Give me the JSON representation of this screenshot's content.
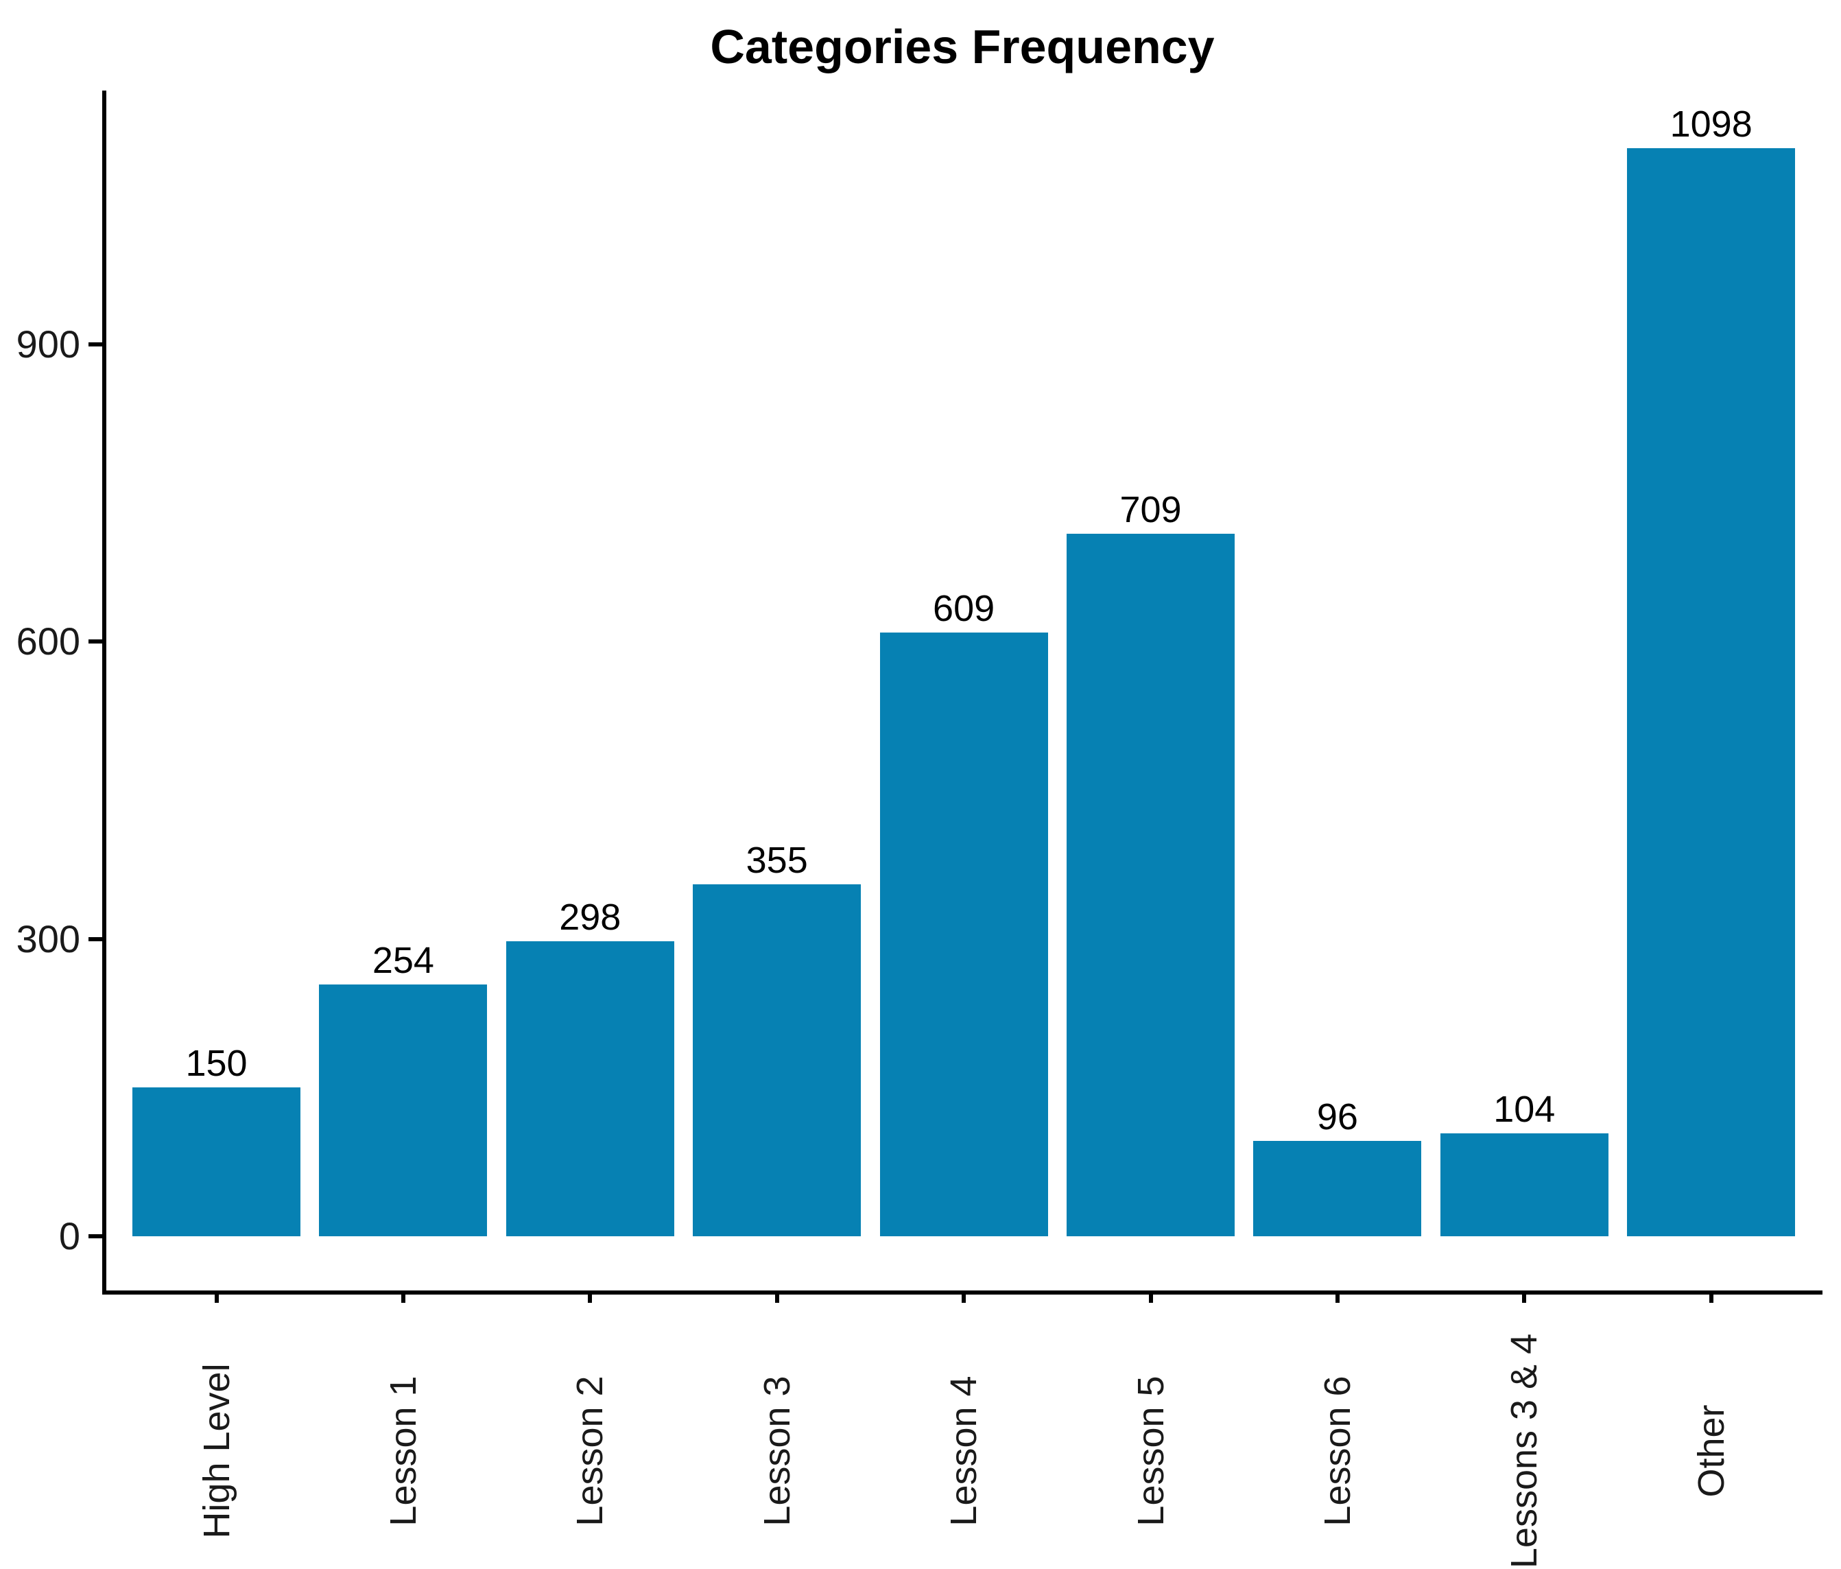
{
  "chart_data": {
    "type": "bar",
    "title": "Categories Frequency",
    "categories": [
      "High Level",
      "Lesson 1",
      "Lesson 2",
      "Lesson 3",
      "Lesson 4",
      "Lesson 5",
      "Lesson 6",
      "Lessons 3 & 4",
      "Other"
    ],
    "values": [
      150,
      254,
      298,
      355,
      609,
      709,
      96,
      104,
      1098
    ],
    "yticks": [
      0,
      300,
      600,
      900
    ],
    "ylim": [
      0,
      1155
    ],
    "xlabel": "",
    "ylabel": "",
    "grid": false,
    "legend_position": "none",
    "value_labels_shown": true,
    "bar_color": "#0681b3",
    "axis_color": "#000000",
    "title_color": "#000000",
    "value_label_color": "#000000",
    "tick_label_color": "#1a1a1a",
    "background_color": "#ffffff"
  }
}
